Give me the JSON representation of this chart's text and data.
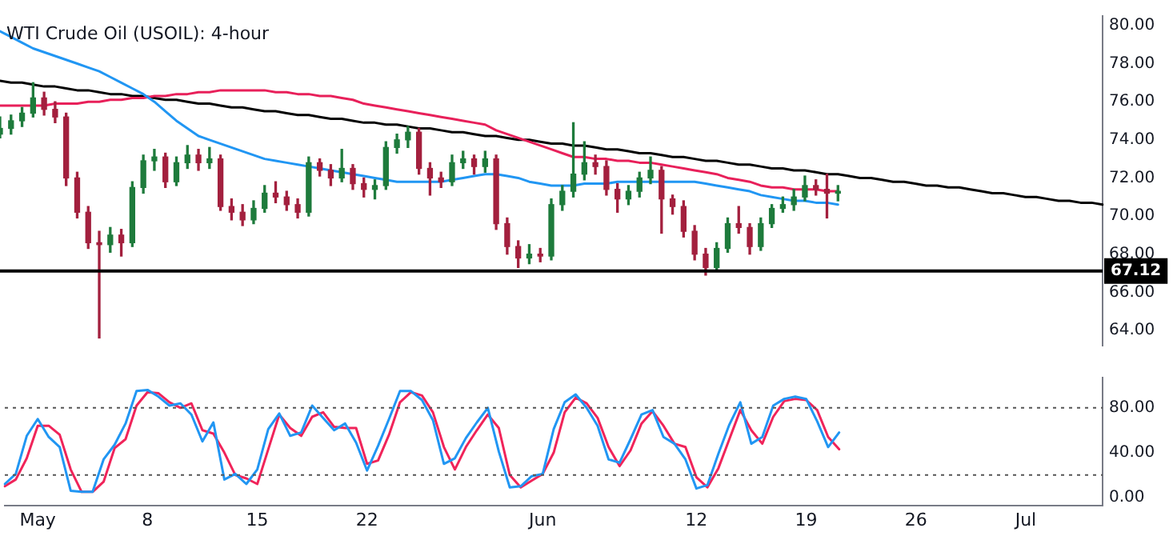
{
  "chart_data": [
    {
      "type": "candlestick",
      "title": "WTI Crude Oil (USOIL): 4-hour",
      "categories": [
        null,
        null,
        null,
        null,
        null,
        null,
        null,
        null,
        null,
        null,
        null,
        null,
        null,
        null,
        null,
        null,
        null,
        null,
        null,
        null,
        null,
        null,
        null,
        null,
        null,
        null,
        null,
        null,
        null,
        null,
        null,
        null,
        null,
        null,
        null,
        null,
        null,
        null,
        null,
        null,
        null,
        null,
        null,
        null,
        null,
        null,
        null,
        null,
        null,
        null,
        null,
        null,
        null,
        null,
        null,
        null,
        null,
        null,
        null,
        null,
        null,
        null,
        null,
        null,
        null,
        null,
        null,
        null,
        null,
        null,
        null,
        null,
        null,
        null,
        null,
        null,
        null,
        null,
        null,
        null,
        null,
        null,
        null,
        null,
        null,
        null,
        null,
        null,
        null,
        null,
        null,
        null,
        null,
        null,
        null,
        null,
        null,
        null,
        null,
        null,
        null
      ],
      "ohlc": [
        [
          74.3,
          75.2,
          74.1,
          74.6
        ],
        [
          74.6,
          75.3,
          74.3,
          75.0
        ],
        [
          75.0,
          75.7,
          74.7,
          75.4
        ],
        [
          75.4,
          77.0,
          75.2,
          76.2
        ],
        [
          76.2,
          76.5,
          75.3,
          75.6
        ],
        [
          75.6,
          76.0,
          74.9,
          75.2
        ],
        [
          75.2,
          75.4,
          71.6,
          72.0
        ],
        [
          72.0,
          72.3,
          69.9,
          70.2
        ],
        [
          70.2,
          70.5,
          68.3,
          68.6
        ],
        [
          68.6,
          69.2,
          63.6,
          68.5
        ],
        [
          68.5,
          69.4,
          68.1,
          69.0
        ],
        [
          69.0,
          69.3,
          67.9,
          68.6
        ],
        [
          68.6,
          71.8,
          68.4,
          71.5
        ],
        [
          71.5,
          73.2,
          71.2,
          72.9
        ],
        [
          72.9,
          73.5,
          72.4,
          73.1
        ],
        [
          73.1,
          73.3,
          71.5,
          71.8
        ],
        [
          71.8,
          73.1,
          71.6,
          72.8
        ],
        [
          72.8,
          73.7,
          72.5,
          73.2
        ],
        [
          73.2,
          73.5,
          72.4,
          72.8
        ],
        [
          72.8,
          73.6,
          72.5,
          73.0
        ],
        [
          73.0,
          73.2,
          70.3,
          70.5
        ],
        [
          70.5,
          70.9,
          69.8,
          70.2
        ],
        [
          70.2,
          70.6,
          69.5,
          69.8
        ],
        [
          69.8,
          70.8,
          69.6,
          70.4
        ],
        [
          70.4,
          71.6,
          70.2,
          71.2
        ],
        [
          71.2,
          71.8,
          70.7,
          71.0
        ],
        [
          71.0,
          71.3,
          70.3,
          70.6
        ],
        [
          70.6,
          70.9,
          69.9,
          70.2
        ],
        [
          70.2,
          73.1,
          70.0,
          72.8
        ],
        [
          72.8,
          73.0,
          72.1,
          72.4
        ],
        [
          72.4,
          72.7,
          71.6,
          72.0
        ],
        [
          72.0,
          73.5,
          71.8,
          72.5
        ],
        [
          72.5,
          72.7,
          71.4,
          71.7
        ],
        [
          71.7,
          72.0,
          71.0,
          71.4
        ],
        [
          71.4,
          71.9,
          70.9,
          71.6
        ],
        [
          71.6,
          73.9,
          71.4,
          73.6
        ],
        [
          73.6,
          74.3,
          73.3,
          74.0
        ],
        [
          74.0,
          74.7,
          73.6,
          74.4
        ],
        [
          74.4,
          74.6,
          72.2,
          72.5
        ],
        [
          72.5,
          72.8,
          71.1,
          72.0
        ],
        [
          72.0,
          72.3,
          71.5,
          71.8
        ],
        [
          71.8,
          73.2,
          71.6,
          72.8
        ],
        [
          72.8,
          73.4,
          72.5,
          73.0
        ],
        [
          73.0,
          73.2,
          72.2,
          72.6
        ],
        [
          72.6,
          73.4,
          72.3,
          73.0
        ],
        [
          73.0,
          73.2,
          69.3,
          69.6
        ],
        [
          69.6,
          69.9,
          68.0,
          68.4
        ],
        [
          68.4,
          68.7,
          67.3,
          67.8
        ],
        [
          67.8,
          68.5,
          67.5,
          68.0
        ],
        [
          68.0,
          68.3,
          67.6,
          67.9
        ],
        [
          67.9,
          70.9,
          67.7,
          70.6
        ],
        [
          70.6,
          71.6,
          70.3,
          71.3
        ],
        [
          71.3,
          74.9,
          71.0,
          72.2
        ],
        [
          72.2,
          73.9,
          71.9,
          72.8
        ],
        [
          72.8,
          73.2,
          72.2,
          72.6
        ],
        [
          72.6,
          72.9,
          71.1,
          71.4
        ],
        [
          71.4,
          71.7,
          70.2,
          70.9
        ],
        [
          70.9,
          71.6,
          70.6,
          71.3
        ],
        [
          71.3,
          72.3,
          71.0,
          72.0
        ],
        [
          72.0,
          73.1,
          71.7,
          72.4
        ],
        [
          72.4,
          72.6,
          69.1,
          70.9
        ],
        [
          70.9,
          71.1,
          70.1,
          70.5
        ],
        [
          70.5,
          70.8,
          68.9,
          69.2
        ],
        [
          69.2,
          69.5,
          67.7,
          68.0
        ],
        [
          68.0,
          68.3,
          66.9,
          67.3
        ],
        [
          67.3,
          68.6,
          67.1,
          68.3
        ],
        [
          68.3,
          69.9,
          68.1,
          69.6
        ],
        [
          69.6,
          70.5,
          69.1,
          69.4
        ],
        [
          69.4,
          69.6,
          68.0,
          68.4
        ],
        [
          68.4,
          69.9,
          68.2,
          69.6
        ],
        [
          69.6,
          70.6,
          69.4,
          70.4
        ],
        [
          70.4,
          71.0,
          70.2,
          70.6
        ],
        [
          70.6,
          71.4,
          70.3,
          71.0
        ],
        [
          71.0,
          72.1,
          70.8,
          71.6
        ],
        [
          71.6,
          71.9,
          71.1,
          71.4
        ],
        [
          71.4,
          72.2,
          69.9,
          71.2
        ],
        [
          71.2,
          71.6,
          70.8,
          71.3
        ],
        null,
        null,
        null,
        null,
        null,
        null,
        null,
        null,
        null,
        null,
        null,
        null,
        null,
        null,
        null,
        null,
        null,
        null,
        null,
        null,
        null,
        null,
        null,
        null
      ],
      "series": [
        {
          "type": "line",
          "color": "#2196f3",
          "values": [
            79.7,
            79.4,
            79.1,
            78.8,
            78.6,
            78.4,
            78.2,
            78.0,
            77.8,
            77.6,
            77.3,
            77.0,
            76.7,
            76.4,
            76.0,
            75.5,
            75.0,
            74.6,
            74.2,
            74.0,
            73.8,
            73.6,
            73.4,
            73.2,
            73.0,
            72.9,
            72.8,
            72.7,
            72.6,
            72.5,
            72.4,
            72.3,
            72.2,
            72.1,
            72.0,
            71.9,
            71.8,
            71.8,
            71.8,
            71.8,
            71.8,
            71.9,
            72.0,
            72.1,
            72.2,
            72.2,
            72.1,
            72.0,
            71.8,
            71.7,
            71.6,
            71.6,
            71.6,
            71.7,
            71.7,
            71.7,
            71.8,
            71.8,
            71.8,
            71.8,
            71.8,
            71.8,
            71.8,
            71.8,
            71.7,
            71.6,
            71.5,
            71.4,
            71.3,
            71.1,
            71.0,
            70.9,
            70.8,
            70.8,
            70.7,
            70.7,
            70.6,
            null,
            null,
            null,
            null,
            null,
            null,
            null,
            null,
            null,
            null,
            null,
            null,
            null,
            null,
            null,
            null,
            null,
            null,
            null,
            null,
            null,
            null,
            null,
            null
          ]
        },
        {
          "type": "line",
          "color": "#e8205a",
          "values": [
            75.8,
            75.8,
            75.8,
            75.8,
            75.8,
            75.9,
            75.9,
            75.9,
            76.0,
            76.0,
            76.1,
            76.1,
            76.2,
            76.2,
            76.3,
            76.3,
            76.4,
            76.4,
            76.5,
            76.5,
            76.6,
            76.6,
            76.6,
            76.6,
            76.6,
            76.5,
            76.5,
            76.4,
            76.4,
            76.3,
            76.3,
            76.2,
            76.1,
            75.9,
            75.8,
            75.7,
            75.6,
            75.5,
            75.4,
            75.3,
            75.2,
            75.1,
            75.0,
            74.9,
            74.8,
            74.5,
            74.3,
            74.1,
            73.9,
            73.7,
            73.5,
            73.3,
            73.1,
            73.1,
            73.0,
            73.0,
            72.9,
            72.9,
            72.8,
            72.8,
            72.7,
            72.6,
            72.5,
            72.4,
            72.3,
            72.2,
            72.0,
            71.9,
            71.8,
            71.6,
            71.5,
            71.5,
            71.4,
            71.4,
            71.4,
            71.3,
            71.3,
            null,
            null,
            null,
            null,
            null,
            null,
            null,
            null,
            null,
            null,
            null,
            null,
            null,
            null,
            null,
            null,
            null,
            null,
            null,
            null,
            null,
            null,
            null,
            null
          ]
        },
        {
          "type": "line",
          "color": "#000000",
          "values": [
            77.1,
            77.0,
            77.0,
            76.9,
            76.8,
            76.8,
            76.7,
            76.6,
            76.6,
            76.5,
            76.4,
            76.4,
            76.3,
            76.3,
            76.2,
            76.1,
            76.1,
            76.0,
            75.9,
            75.9,
            75.8,
            75.7,
            75.7,
            75.6,
            75.5,
            75.5,
            75.4,
            75.3,
            75.3,
            75.2,
            75.1,
            75.1,
            75.0,
            74.9,
            74.9,
            74.8,
            74.8,
            74.7,
            74.6,
            74.6,
            74.5,
            74.4,
            74.4,
            74.3,
            74.2,
            74.2,
            74.1,
            74.0,
            74.0,
            73.9,
            73.8,
            73.8,
            73.7,
            73.7,
            73.6,
            73.5,
            73.5,
            73.4,
            73.3,
            73.3,
            73.2,
            73.1,
            73.1,
            73.0,
            72.9,
            72.9,
            72.8,
            72.7,
            72.7,
            72.6,
            72.5,
            72.5,
            72.4,
            72.4,
            72.3,
            72.2,
            72.2,
            72.1,
            72.0,
            72.0,
            71.9,
            71.8,
            71.8,
            71.7,
            71.6,
            71.6,
            71.5,
            71.5,
            71.4,
            71.3,
            71.2,
            71.2,
            71.1,
            71.0,
            71.0,
            70.9,
            70.8,
            70.8,
            70.7,
            70.7,
            70.6
          ]
        }
      ],
      "ylim": [
        63.2,
        80.5
      ],
      "yticks": [
        {
          "value": 64,
          "label": "64.00"
        },
        {
          "value": 66,
          "label": "66.00"
        },
        {
          "value": 68,
          "label": "68.00"
        },
        {
          "value": 70,
          "label": "70.00"
        },
        {
          "value": 72,
          "label": "72.00"
        },
        {
          "value": 74,
          "label": "74.00"
        },
        {
          "value": 76,
          "label": "76.00"
        },
        {
          "value": 78,
          "label": "78.00"
        },
        {
          "value": 80,
          "label": "80.00"
        }
      ],
      "tick_labels": "y",
      "ref_lines": [
        {
          "axis": "y",
          "value": 67.12,
          "label": "67.12",
          "color": "#000000"
        }
      ]
    },
    {
      "type": "line",
      "categories": [
        null,
        null,
        null,
        "May",
        null,
        null,
        null,
        null,
        null,
        null,
        null,
        null,
        null,
        "8",
        null,
        null,
        null,
        null,
        null,
        null,
        null,
        null,
        null,
        "15",
        null,
        null,
        null,
        null,
        null,
        null,
        null,
        null,
        null,
        "22",
        null,
        null,
        null,
        null,
        null,
        null,
        null,
        null,
        null,
        null,
        null,
        null,
        null,
        null,
        null,
        "Jun",
        null,
        null,
        null,
        null,
        null,
        null,
        null,
        null,
        null,
        null,
        null,
        null,
        null,
        "12",
        null,
        null,
        null,
        null,
        null,
        null,
        null,
        null,
        null,
        "19",
        null,
        null,
        null,
        null,
        null,
        null,
        null,
        null,
        null,
        "26",
        null,
        null,
        null,
        null,
        null,
        null,
        null,
        null,
        null,
        "Jul",
        null,
        null,
        null,
        null,
        null,
        null,
        null
      ],
      "series": [
        {
          "color": "#2196f3",
          "values": [
            12,
            21,
            55,
            70,
            54,
            45,
            6,
            5,
            5,
            34,
            47,
            66,
            95,
            96,
            90,
            82,
            84,
            74,
            50,
            67,
            16,
            21,
            12,
            25,
            61,
            75,
            55,
            58,
            82,
            71,
            60,
            66,
            49,
            24,
            46,
            70,
            95,
            95,
            87,
            69,
            30,
            35,
            53,
            67,
            80,
            41,
            9,
            10,
            19,
            21,
            61,
            85,
            92,
            80,
            64,
            34,
            31,
            52,
            74,
            78,
            54,
            48,
            34,
            8,
            11,
            39,
            65,
            85,
            48,
            54,
            82,
            88,
            90,
            88,
            68,
            45,
            58,
            null,
            null,
            null,
            null,
            null,
            null,
            null,
            null,
            null,
            null,
            null,
            null,
            null,
            null,
            null,
            null,
            null,
            null,
            null,
            null,
            null,
            null,
            null,
            null
          ]
        },
        {
          "color": "#f0245a",
          "values": [
            10,
            16,
            35,
            64,
            64,
            56,
            25,
            5,
            5,
            14,
            44,
            52,
            82,
            94,
            93,
            85,
            80,
            84,
            60,
            57,
            40,
            20,
            17,
            12,
            43,
            74,
            62,
            55,
            72,
            76,
            63,
            62,
            62,
            30,
            33,
            56,
            85,
            94,
            91,
            76,
            45,
            25,
            45,
            60,
            74,
            62,
            20,
            9,
            15,
            21,
            40,
            76,
            89,
            84,
            71,
            45,
            28,
            42,
            66,
            77,
            64,
            48,
            45,
            18,
            9,
            26,
            52,
            78,
            60,
            48,
            72,
            86,
            88,
            87,
            78,
            54,
            43,
            null,
            null,
            null,
            null,
            null,
            null,
            null,
            null,
            null,
            null,
            null,
            null,
            null,
            null,
            null,
            null,
            null,
            null,
            null,
            null,
            null,
            null,
            null,
            null
          ]
        }
      ],
      "ylim": [
        -7,
        107
      ],
      "yticks": [
        {
          "value": 0,
          "label": "0.00"
        },
        {
          "value": 40,
          "label": "40.00"
        },
        {
          "value": 80,
          "label": "80.00"
        }
      ],
      "ref_lines": [
        {
          "axis": "y",
          "value": 80,
          "color": "#555555",
          "line_style": "dotted"
        },
        {
          "axis": "y",
          "value": 20,
          "color": "#555555",
          "line_style": "dotted"
        }
      ]
    }
  ]
}
